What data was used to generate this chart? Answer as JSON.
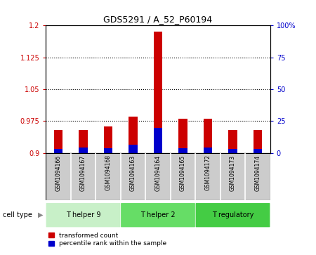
{
  "title": "GDS5291 / A_52_P60194",
  "samples": [
    "GSM1094166",
    "GSM1094167",
    "GSM1094168",
    "GSM1094163",
    "GSM1094164",
    "GSM1094165",
    "GSM1094172",
    "GSM1094173",
    "GSM1094174"
  ],
  "red_values": [
    0.955,
    0.955,
    0.963,
    0.985,
    1.185,
    0.98,
    0.98,
    0.955,
    0.955
  ],
  "blue_values": [
    0.91,
    0.913,
    0.911,
    0.92,
    0.96,
    0.912,
    0.913,
    0.909,
    0.909
  ],
  "ylim_left": [
    0.9,
    1.2
  ],
  "ylim_right": [
    0,
    100
  ],
  "yticks_left": [
    0.9,
    0.975,
    1.05,
    1.125,
    1.2
  ],
  "yticks_right": [
    0,
    25,
    50,
    75,
    100
  ],
  "ytick_labels_left": [
    "0.9",
    "0.975",
    "1.05",
    "1.125",
    "1.2"
  ],
  "ytick_labels_right": [
    "0",
    "25",
    "50",
    "75",
    "100%"
  ],
  "hlines": [
    0.975,
    1.05,
    1.125
  ],
  "cell_type_groups": [
    {
      "label": "T helper 9",
      "start": 0,
      "end": 3,
      "color": "#c8f0c8"
    },
    {
      "label": "T helper 2",
      "start": 3,
      "end": 6,
      "color": "#66dd66"
    },
    {
      "label": "T regulatory",
      "start": 6,
      "end": 9,
      "color": "#44cc44"
    }
  ],
  "bar_width": 0.35,
  "bar_color_red": "#cc0000",
  "bar_color_blue": "#0000cc",
  "bg_color": "#ffffff",
  "tick_area_bg": "#cccccc",
  "legend_red": "transformed count",
  "legend_blue": "percentile rank within the sample",
  "cell_type_label": "cell type"
}
